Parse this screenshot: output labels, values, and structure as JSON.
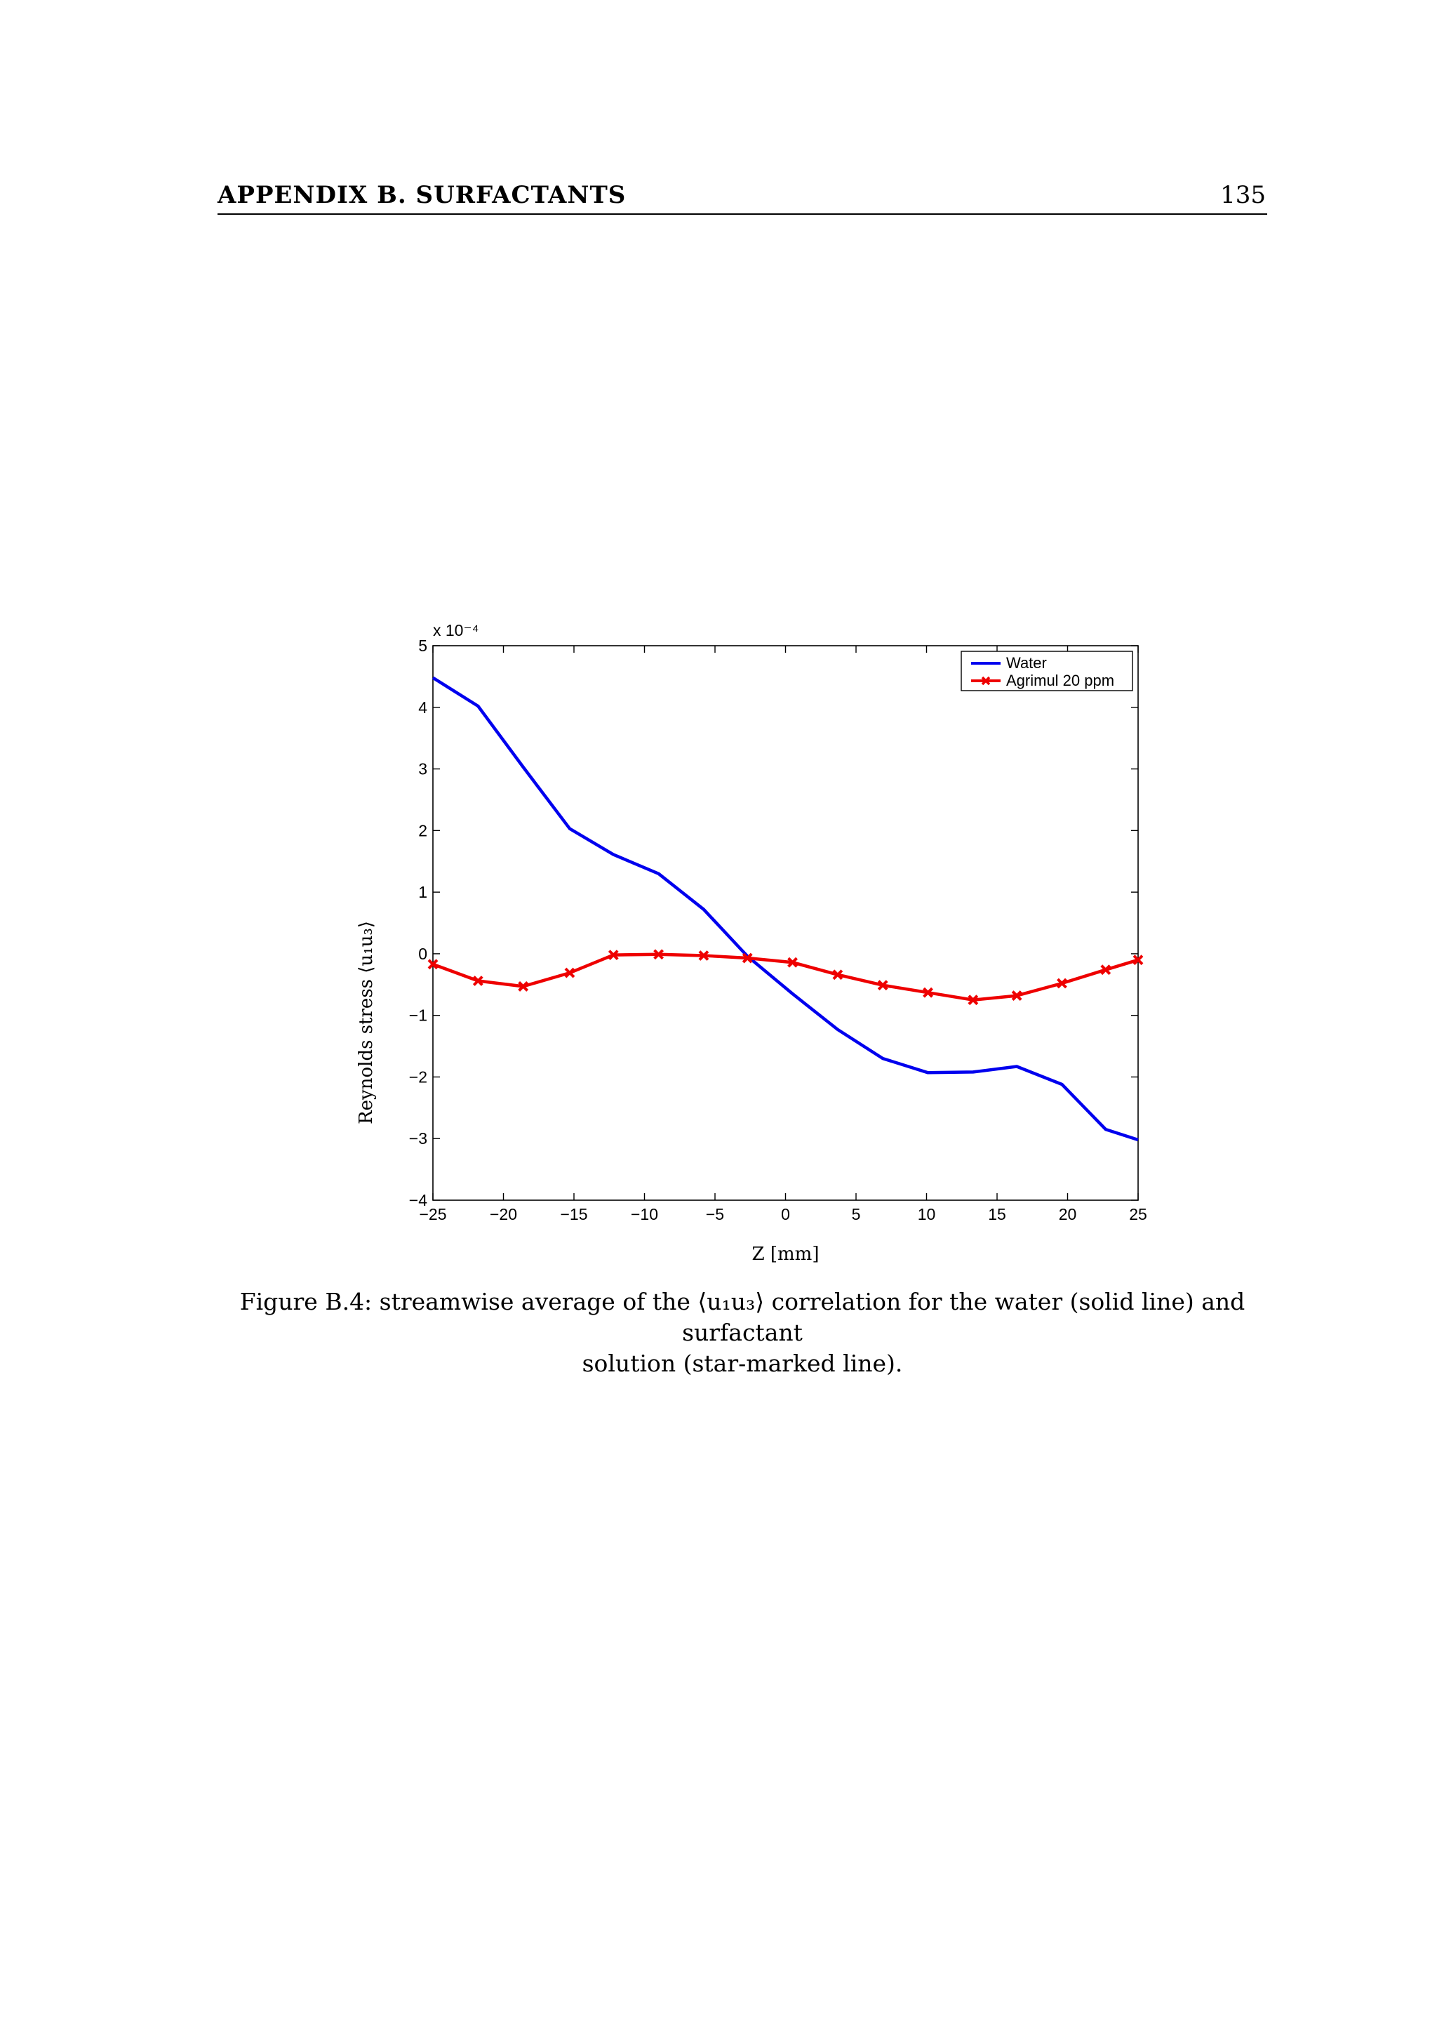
{
  "header": {
    "title": "APPENDIX B.  SURFACTANTS",
    "page_number": "135"
  },
  "caption": {
    "line1": "Figure B.4: streamwise average of the ⟨u₁u₃⟩ correlation for the water (solid line) and surfactant",
    "line2": "solution (star-marked line)."
  },
  "chart_data": {
    "type": "line",
    "title": "",
    "xlabel": "Z [mm]",
    "ylabel": "Reynolds stress ⟨u₁u₃⟩",
    "y_multiplier": "x 10⁻⁴",
    "xlim": [
      -25,
      25
    ],
    "ylim": [
      -4,
      5
    ],
    "xticks": [
      "−25",
      "−20",
      "−15",
      "−10",
      "−5",
      "0",
      "5",
      "10",
      "15",
      "20",
      "25"
    ],
    "yticks": [
      "−4",
      "−3",
      "−2",
      "−1",
      "0",
      "1",
      "2",
      "3",
      "4",
      "5"
    ],
    "legend_position": "top-right",
    "grid": false,
    "series": [
      {
        "name": "Water",
        "color": "#0000ee",
        "marker": "none",
        "x": [
          -25,
          -21.8,
          -18.6,
          -15.3,
          -12.2,
          -9,
          -5.8,
          -2.7,
          0.5,
          3.7,
          6.9,
          10.1,
          13.3,
          16.4,
          19.6,
          22.7,
          25
        ],
        "y": [
          4.48,
          4.02,
          3.03,
          2.03,
          1.61,
          1.3,
          0.72,
          -0.04,
          -0.65,
          -1.23,
          -1.7,
          -1.93,
          -1.92,
          -1.83,
          -2.12,
          -2.85,
          -3.02
        ]
      },
      {
        "name": "Agrimul 20 ppm",
        "color": "#ee0000",
        "marker": "x",
        "x": [
          -25,
          -21.8,
          -18.6,
          -15.3,
          -12.2,
          -9,
          -5.8,
          -2.7,
          0.5,
          3.7,
          6.9,
          10.1,
          13.3,
          16.4,
          19.6,
          22.7,
          25
        ],
        "y": [
          -0.17,
          -0.44,
          -0.53,
          -0.31,
          -0.02,
          -0.01,
          -0.03,
          -0.07,
          -0.14,
          -0.34,
          -0.51,
          -0.63,
          -0.75,
          -0.68,
          -0.48,
          -0.26,
          -0.1
        ]
      }
    ]
  }
}
